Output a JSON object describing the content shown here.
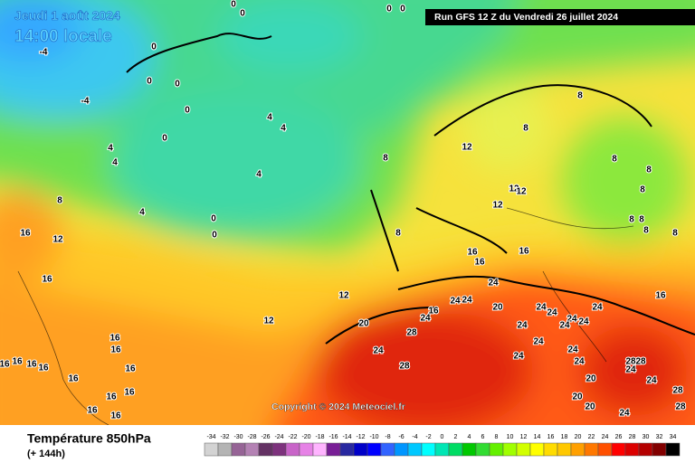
{
  "header": {
    "date": "Jeudi 1 août 2024",
    "time": "14:00 locale",
    "run": "Run GFS 12 Z du Vendredi 26 juillet 2024"
  },
  "footer": {
    "title": "Température 850hPa",
    "subtitle": "(+ 144h)",
    "copyright": "Copyright © 2024 Meteociel.fr"
  },
  "scale": {
    "values": [
      -34,
      -32,
      -30,
      -28,
      -26,
      -24,
      -22,
      -20,
      -18,
      -16,
      -14,
      -12,
      -10,
      -8,
      -6,
      -4,
      -2,
      0,
      2,
      4,
      6,
      8,
      10,
      12,
      14,
      16,
      18,
      20,
      22,
      24,
      26,
      28,
      30,
      32,
      34
    ],
    "colors": [
      "#d3d3d3",
      "#b4b4b4",
      "#966496",
      "#b482b4",
      "#643264",
      "#7d327d",
      "#c864c8",
      "#e682e6",
      "#ffb4ff",
      "#781e96",
      "#2828a0",
      "#0000c8",
      "#0000ff",
      "#3264ff",
      "#0096ff",
      "#00c8ff",
      "#00ffff",
      "#00e6b4",
      "#00dc64",
      "#00c800",
      "#32dc32",
      "#64f000",
      "#a0ff00",
      "#d2ff00",
      "#ffff00",
      "#ffdc00",
      "#ffc800",
      "#ffa000",
      "#ff7800",
      "#ff5000",
      "#ff0000",
      "#dc0000",
      "#b40000",
      "#820000",
      "#000000"
    ]
  },
  "contour_labels": [
    "0",
    "0",
    "0",
    "0",
    "0",
    "0",
    "0",
    "0",
    "0",
    "0",
    "0",
    "-4",
    "-4",
    "4",
    "4",
    "4",
    "4",
    "4",
    "4",
    "8",
    "8",
    "8",
    "8",
    "8",
    "8",
    "8",
    "8",
    "8",
    "8",
    "8",
    "8",
    "12",
    "12",
    "12",
    "12",
    "12",
    "12",
    "12",
    "16",
    "16",
    "16",
    "16",
    "16",
    "16",
    "16",
    "16",
    "16",
    "16",
    "16",
    "16",
    "16",
    "16",
    "16",
    "16",
    "16",
    "16",
    "24",
    "24",
    "24",
    "16",
    "24",
    "20",
    "24",
    "24",
    "24",
    "24",
    "24",
    "24",
    "24",
    "20",
    "28",
    "24",
    "24",
    "24",
    "24",
    "24",
    "28",
    "28",
    "28",
    "24",
    "20",
    "24",
    "28",
    "20",
    "20",
    "28",
    "24"
  ]
}
